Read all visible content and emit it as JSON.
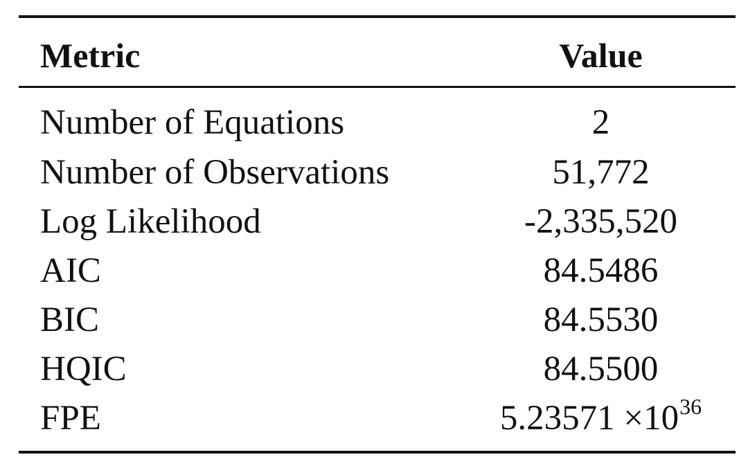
{
  "table": {
    "header": {
      "metric": "Metric",
      "value": "Value"
    },
    "rows": [
      {
        "metric": "Number of Equations",
        "value": "2"
      },
      {
        "metric": "Number of Observations",
        "value": "51,772"
      },
      {
        "metric": "Log Likelihood",
        "value": "-2,335,520"
      },
      {
        "metric": "AIC",
        "value": "84.5486"
      },
      {
        "metric": "BIC",
        "value": "84.5530"
      },
      {
        "metric": "HQIC",
        "value": "84.5500"
      },
      {
        "metric": "FPE",
        "value": "5.23571 ×10",
        "value_exponent": "36"
      }
    ]
  }
}
